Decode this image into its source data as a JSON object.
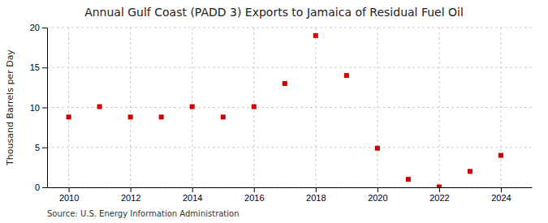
{
  "chart_data": {
    "type": "scatter",
    "title": "Annual Gulf Coast (PADD 3) Exports to Jamaica of Residual Fuel Oil",
    "ylabel": "Thousand Barrels per Day",
    "source": "Source: U.S. Energy Information Administration",
    "x": [
      2010,
      2011,
      2012,
      2013,
      2014,
      2015,
      2016,
      2017,
      2018,
      2019,
      2020,
      2021,
      2022,
      2023,
      2024
    ],
    "values": [
      8.8,
      10.1,
      8.8,
      8.8,
      10.1,
      8.8,
      10.1,
      13.0,
      19.0,
      14.0,
      4.9,
      1.0,
      0.05,
      2.0,
      4.0
    ],
    "color": "#cc0000",
    "marker": "square",
    "xlim": [
      2009.3,
      2025.0
    ],
    "xticks": [
      2010,
      2012,
      2014,
      2016,
      2018,
      2020,
      2022,
      2024
    ],
    "ylim": [
      0,
      20
    ],
    "yticks": [
      0,
      5,
      10,
      15,
      20
    ],
    "grid": true
  }
}
